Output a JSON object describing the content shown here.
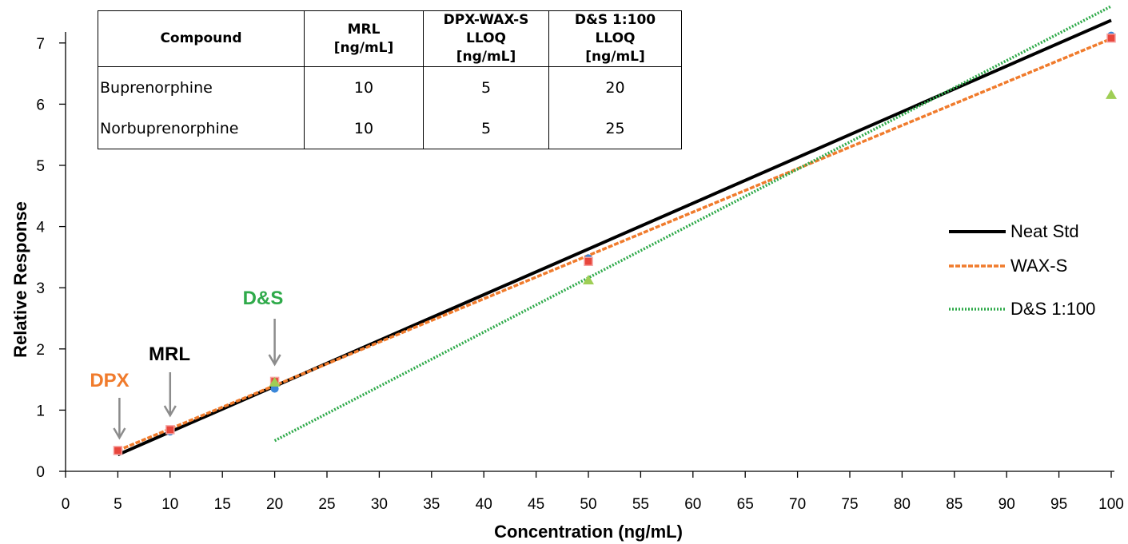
{
  "chart_data": {
    "type": "scatter",
    "xlabel": "Concentration (ng/mL)",
    "ylabel": "Relative Response",
    "xlim": [
      0,
      100
    ],
    "ylim": [
      0,
      7.5
    ],
    "x_ticks": [
      "0",
      "5",
      "10",
      "15",
      "20",
      "25",
      "30",
      "35",
      "40",
      "45",
      "50",
      "55",
      "60",
      "65",
      "70",
      "75",
      "80",
      "85",
      "90",
      "95",
      "100"
    ],
    "y_ticks": [
      "0",
      "1",
      "2",
      "3",
      "4",
      "5",
      "6",
      "7"
    ],
    "grid": false,
    "legend_position": "right",
    "series": [
      {
        "name": "Neat Std",
        "color": "#000000",
        "line": "solid",
        "marker": "circle",
        "marker_color": "#3a87d9",
        "x": [
          5,
          10,
          20,
          50,
          100
        ],
        "y": [
          0.34,
          0.65,
          1.35,
          3.48,
          7.12
        ],
        "trend": [
          [
            5,
            0.27
          ],
          [
            100,
            7.37
          ]
        ]
      },
      {
        "name": "WAX-S",
        "color": "#f07b2c",
        "line": "dashed",
        "marker": "square",
        "marker_color": "#e8463c",
        "x": [
          5,
          10,
          20,
          50,
          100
        ],
        "y": [
          0.34,
          0.68,
          1.47,
          3.43,
          7.08
        ],
        "trend": [
          [
            5,
            0.34
          ],
          [
            100,
            7.07
          ]
        ]
      },
      {
        "name": "D&S 1:100",
        "color": "#2faa4a",
        "line": "dotted",
        "marker": "triangle",
        "marker_color": "#9fce55",
        "x": [
          20,
          50,
          100
        ],
        "y": [
          1.45,
          3.12,
          6.15
        ],
        "trend": [
          [
            20,
            0.5
          ],
          [
            100,
            7.6
          ]
        ]
      }
    ],
    "annotations": [
      {
        "text": "DPX",
        "color": "#f07b2c",
        "x": 5
      },
      {
        "text": "MRL",
        "color": "#000000",
        "x": 10
      },
      {
        "text": "D&S",
        "color": "#2faa4a",
        "x": 20
      }
    ]
  },
  "table": {
    "headers": [
      [
        "Compound"
      ],
      [
        "MRL",
        "[ng/mL]"
      ],
      [
        "DPX-WAX-S",
        "LLOQ",
        "[ng/mL]"
      ],
      [
        "D&S 1:100",
        "LLOQ",
        "[ng/mL]"
      ]
    ],
    "rows": [
      [
        "Buprenorphine",
        "10",
        "5",
        "20"
      ],
      [
        "Norbuprenorphine",
        "10",
        "5",
        "25"
      ]
    ]
  }
}
